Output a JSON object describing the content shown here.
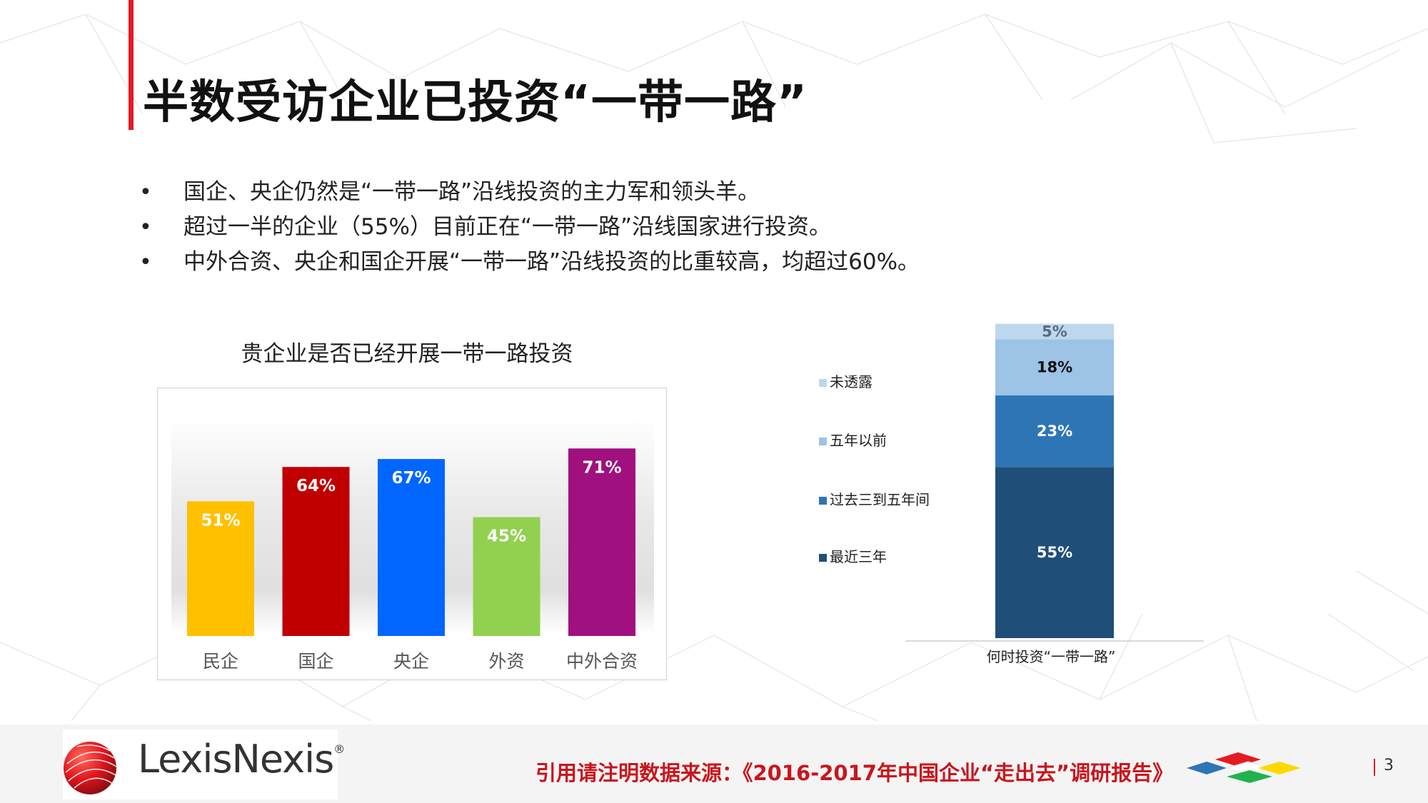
{
  "title": "半数受访企业已投资“一带一路”",
  "bullets": [
    "国企、央企仍然是“一带一路”沿线投资的主力军和领头羊。",
    "超过一半的企业（55%）目前正在“一带一路”沿线国家进行投资。",
    "中外合资、央企和国企开展“一带一路”沿线投资的比重较高，均超过60%。"
  ],
  "bullet_symbol": "•",
  "chart_data": [
    {
      "type": "bar",
      "title": "贵企业是否已经开展一带一路投资",
      "categories": [
        "民企",
        "国企",
        "央企",
        "外资",
        "中外合资"
      ],
      "values": [
        51,
        64,
        67,
        45,
        71
      ],
      "labels": [
        "51%",
        "64%",
        "67%",
        "45%",
        "71%"
      ],
      "colors": [
        "#FFC000",
        "#C00000",
        "#0066FF",
        "#92D050",
        "#A0107E"
      ],
      "ylim": [
        0,
        80
      ],
      "grid": false
    },
    {
      "type": "bar",
      "stacked": true,
      "categories": [
        "何时投资“一带一路”"
      ],
      "series": [
        {
          "name": "最近三年",
          "values": [
            55
          ],
          "label": "55%",
          "color": "#1F4E79"
        },
        {
          "name": "过去三到五年间",
          "values": [
            23
          ],
          "label": "23%",
          "color": "#2E75B6"
        },
        {
          "name": "五年以前",
          "values": [
            18
          ],
          "label": "18%",
          "color": "#9DC3E6"
        },
        {
          "name": "未透露",
          "values": [
            5
          ],
          "label": "5%",
          "color": "#BDD7EE"
        }
      ],
      "ylim": [
        0,
        100
      ],
      "legend": "left",
      "grid": false
    }
  ],
  "footer": {
    "logo": "LexisNexis",
    "logo_mark": "®",
    "citation": "引用请注明数据来源：《2016-2017年中国企业“走出去”调研报告》",
    "page": "3"
  }
}
